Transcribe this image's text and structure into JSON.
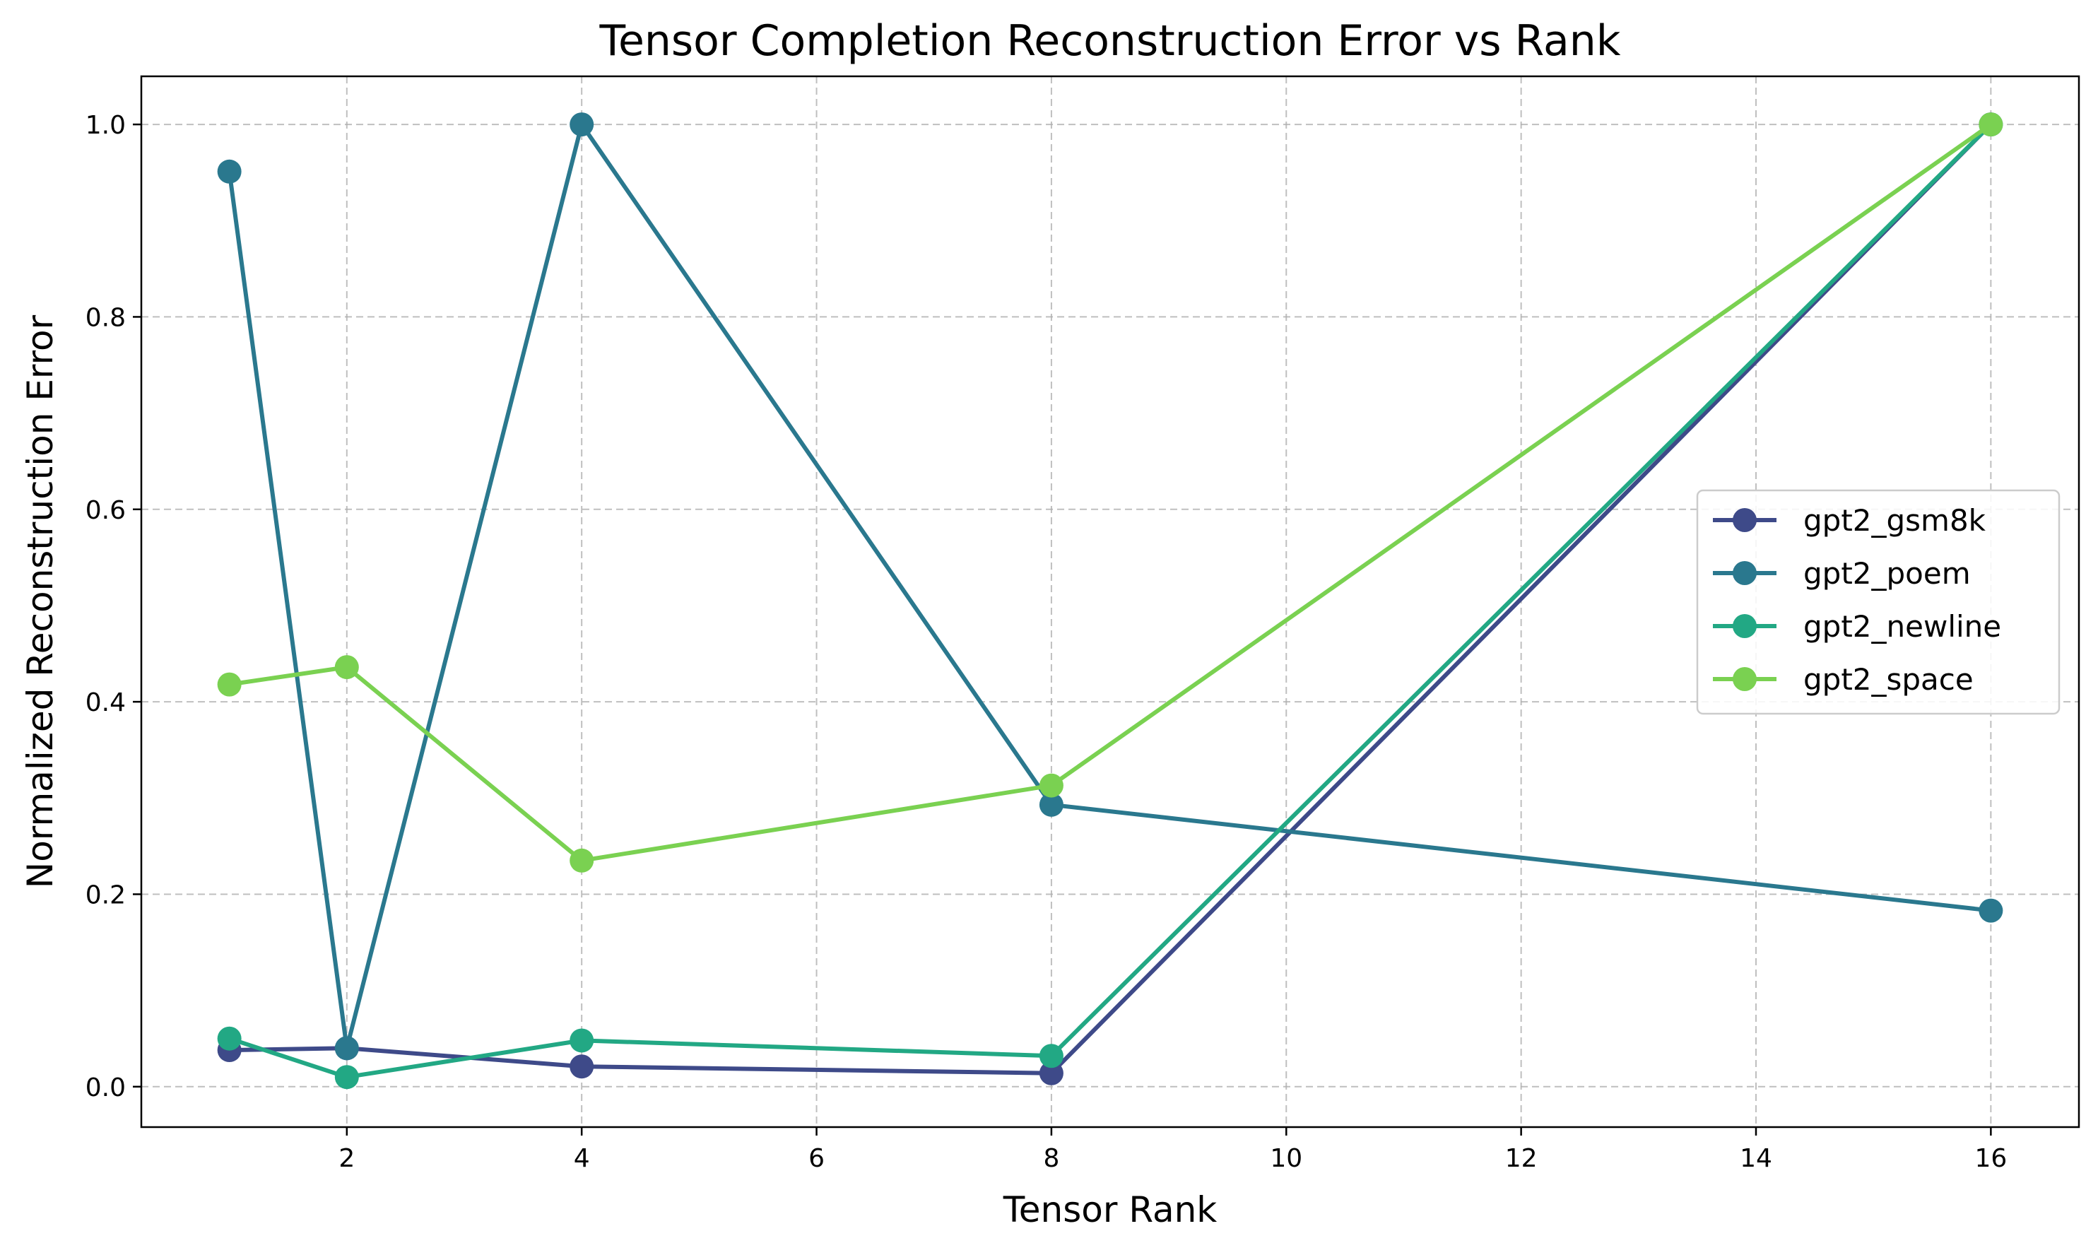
{
  "chart_data": {
    "type": "line",
    "title": "Tensor Completion Reconstruction Error vs Rank",
    "xlabel": "Tensor Rank",
    "ylabel": "Normalized Reconstruction Error",
    "x": [
      1,
      2,
      4,
      8,
      16
    ],
    "xlim": [
      0.25,
      16.75
    ],
    "ylim": [
      -0.042,
      1.05
    ],
    "xticks": [
      2,
      4,
      6,
      8,
      10,
      12,
      14,
      16
    ],
    "yticks": [
      0.0,
      0.2,
      0.4,
      0.6,
      0.8,
      1.0
    ],
    "xtick_labels": [
      "2",
      "4",
      "6",
      "8",
      "10",
      "12",
      "14",
      "16"
    ],
    "ytick_labels": [
      "0.0",
      "0.2",
      "0.4",
      "0.6",
      "0.8",
      "1.0"
    ],
    "grid": true,
    "legend_position": "center-right",
    "series": [
      {
        "name": "gpt2_gsm8k",
        "color": "#3e4a89",
        "values": [
          0.038,
          0.04,
          0.021,
          0.014,
          1.0
        ]
      },
      {
        "name": "gpt2_poem",
        "color": "#2a788e",
        "values": [
          0.951,
          0.04,
          1.0,
          0.293,
          0.183
        ]
      },
      {
        "name": "gpt2_newline",
        "color": "#22a884",
        "values": [
          0.05,
          0.01,
          0.048,
          0.032,
          1.0
        ]
      },
      {
        "name": "gpt2_space",
        "color": "#7ad151",
        "values": [
          0.418,
          0.436,
          0.235,
          0.313,
          1.0
        ]
      }
    ]
  }
}
